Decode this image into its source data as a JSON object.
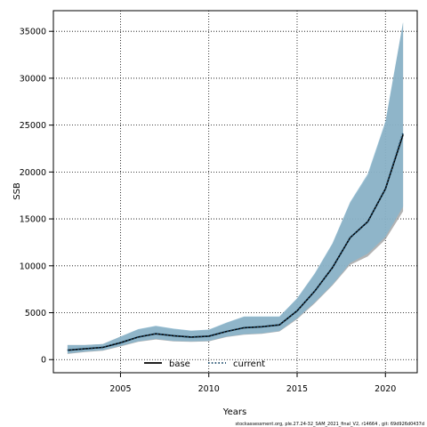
{
  "chart_data": {
    "type": "line",
    "xlabel": "Years",
    "ylabel": "SSB",
    "xlim": [
      2001.2,
      2021.8
    ],
    "ylim": [
      -1400,
      37200
    ],
    "xticks": [
      2005,
      2010,
      2015,
      2020
    ],
    "yticks": [
      0,
      5000,
      10000,
      15000,
      20000,
      25000,
      30000,
      35000
    ],
    "grid": true,
    "legend_position": "bottom",
    "x": [
      2002,
      2003,
      2004,
      2005,
      2006,
      2007,
      2008,
      2009,
      2010,
      2011,
      2012,
      2013,
      2014,
      2015,
      2016,
      2017,
      2018,
      2019,
      2020,
      2021
    ],
    "series": [
      {
        "name": "base",
        "style": "solid",
        "color": "#000000",
        "values": [
          1000,
          1150,
          1300,
          1800,
          2400,
          2750,
          2550,
          2400,
          2500,
          3000,
          3400,
          3500,
          3700,
          5200,
          7300,
          9800,
          13000,
          14700,
          18200,
          24000
        ],
        "lower": [
          600,
          800,
          950,
          1400,
          1900,
          2150,
          1950,
          1900,
          1950,
          2400,
          2650,
          2750,
          3000,
          4300,
          6000,
          7900,
          10100,
          11000,
          12800,
          15800
        ],
        "upper": [
          1550,
          1550,
          1650,
          2450,
          3200,
          3550,
          3250,
          3050,
          3150,
          3900,
          4550,
          4550,
          4550,
          6500,
          9100,
          12300,
          16700,
          19600,
          25200,
          35900
        ]
      },
      {
        "name": "current",
        "style": "dotted",
        "color": "#1b4a6b",
        "values": [
          1000,
          1150,
          1300,
          1800,
          2400,
          2750,
          2550,
          2400,
          2500,
          3000,
          3400,
          3500,
          3700,
          5200,
          7300,
          9800,
          13000,
          14700,
          18200,
          24200
        ],
        "lower": [
          650,
          850,
          1000,
          1450,
          1950,
          2200,
          2000,
          1950,
          2000,
          2450,
          2700,
          2800,
          3050,
          4400,
          6100,
          8000,
          10300,
          11300,
          13100,
          16300
        ],
        "upper": [
          1550,
          1550,
          1650,
          2450,
          3250,
          3600,
          3300,
          3100,
          3200,
          3950,
          4600,
          4600,
          4600,
          6550,
          9200,
          12400,
          16800,
          19800,
          25400,
          36000
        ]
      }
    ],
    "colors": {
      "base_band": "#999999",
      "current_band": "#86b5ce"
    }
  },
  "footer": {
    "text": "stockassessment.org,  ple.27.24-32_SAM_2021_final_V2,  r14664 ,  git: 69d926d0437d"
  }
}
